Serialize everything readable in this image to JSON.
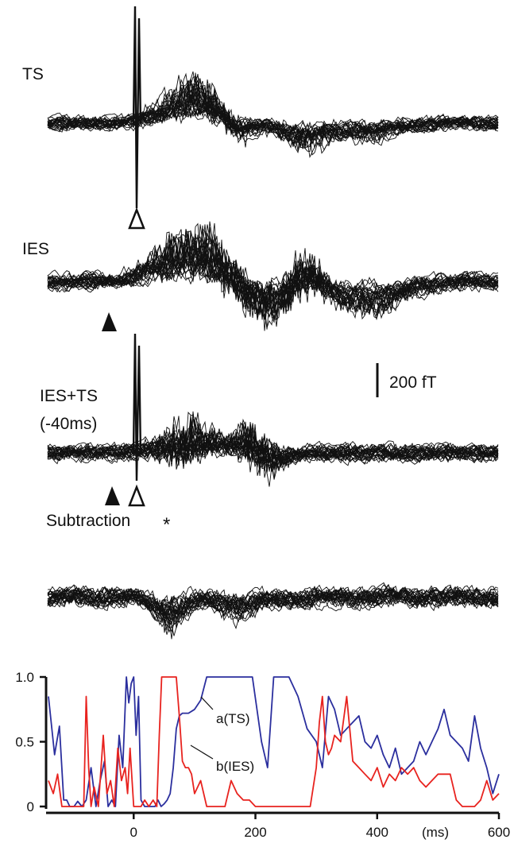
{
  "traces": {
    "panels": [
      {
        "label_lines": [
          "TS"
        ],
        "markers": [
          "open"
        ]
      },
      {
        "label_lines": [
          "IES"
        ],
        "markers": [
          "filled"
        ]
      },
      {
        "label_lines": [
          "IES+TS",
          "(-40ms)"
        ],
        "markers": [
          "filled",
          "open"
        ]
      },
      {
        "label_lines": [
          "Subtraction"
        ],
        "annotation": "*"
      }
    ],
    "scale_bar_label": "200 fT"
  },
  "chart_data": {
    "type": "line",
    "x_unit_label": "(ms)",
    "xlim": [
      -140,
      600
    ],
    "ylim": [
      0,
      1.0
    ],
    "x_ticks": [
      0,
      200,
      400,
      600
    ],
    "y_ticks": [
      0,
      0.5,
      1.0
    ],
    "y_tick_labels": [
      "0",
      "0.5",
      "1.0"
    ],
    "grid": false,
    "series": [
      {
        "name": "a(TS)",
        "color": "#2b2f9e",
        "x": [
          -140,
          -130,
          -122,
          -115,
          -110,
          -105,
          -98,
          -92,
          -85,
          -78,
          -70,
          -62,
          -55,
          -48,
          -42,
          -36,
          -30,
          -24,
          -18,
          -12,
          -8,
          -4,
          0,
          4,
          8,
          12,
          18,
          25,
          30,
          35,
          40,
          45,
          50,
          55,
          60,
          65,
          70,
          75,
          80,
          90,
          100,
          110,
          120,
          135,
          150,
          165,
          180,
          195,
          210,
          220,
          230,
          240,
          255,
          270,
          285,
          300,
          310,
          320,
          330,
          340,
          350,
          360,
          370,
          380,
          390,
          400,
          410,
          420,
          430,
          440,
          450,
          460,
          470,
          480,
          490,
          500,
          510,
          520,
          530,
          540,
          550,
          560,
          570,
          580,
          590,
          600
        ],
        "y": [
          0.85,
          0.4,
          0.62,
          0.05,
          0.05,
          0.0,
          0.0,
          0.04,
          0.0,
          0.05,
          0.3,
          0.0,
          0.2,
          0.35,
          0.0,
          0.05,
          0.0,
          0.55,
          0.3,
          1.0,
          0.8,
          0.95,
          1.0,
          0.55,
          0.85,
          0.05,
          0.0,
          0.0,
          0.0,
          0.0,
          0.05,
          0.0,
          0.02,
          0.05,
          0.1,
          0.3,
          0.6,
          0.7,
          0.72,
          0.72,
          0.75,
          0.82,
          1.0,
          1.0,
          1.0,
          1.0,
          1.0,
          1.0,
          0.5,
          0.3,
          1.0,
          1.0,
          1.0,
          0.85,
          0.6,
          0.5,
          0.3,
          0.85,
          0.75,
          0.55,
          0.6,
          0.65,
          0.7,
          0.5,
          0.45,
          0.55,
          0.4,
          0.3,
          0.45,
          0.25,
          0.3,
          0.35,
          0.5,
          0.4,
          0.5,
          0.6,
          0.75,
          0.55,
          0.5,
          0.45,
          0.35,
          0.7,
          0.45,
          0.3,
          0.1,
          0.25
        ]
      },
      {
        "name": "b(IES)",
        "color": "#e8231f",
        "x": [
          -140,
          -132,
          -125,
          -118,
          -110,
          -100,
          -90,
          -82,
          -78,
          -74,
          -70,
          -65,
          -58,
          -50,
          -44,
          -38,
          -32,
          -26,
          -20,
          -14,
          -10,
          -6,
          0,
          6,
          12,
          18,
          25,
          32,
          38,
          42,
          46,
          50,
          55,
          60,
          65,
          70,
          75,
          80,
          85,
          90,
          95,
          100,
          110,
          120,
          130,
          140,
          150,
          160,
          170,
          180,
          190,
          200,
          215,
          230,
          250,
          270,
          290,
          300,
          305,
          310,
          315,
          320,
          325,
          330,
          340,
          350,
          360,
          370,
          380,
          390,
          400,
          410,
          420,
          430,
          440,
          450,
          460,
          470,
          480,
          490,
          500,
          510,
          520,
          530,
          540,
          550,
          560,
          570,
          580,
          590,
          600
        ],
        "y": [
          0.2,
          0.1,
          0.25,
          0.0,
          0.0,
          0.0,
          0.0,
          0.0,
          0.85,
          0.3,
          0.0,
          0.15,
          0.0,
          0.55,
          0.1,
          0.2,
          0.0,
          0.45,
          0.2,
          0.3,
          0.1,
          0.45,
          0.0,
          0.0,
          0.0,
          0.05,
          0.0,
          0.05,
          0.0,
          0.55,
          1.0,
          1.0,
          1.0,
          1.0,
          1.0,
          1.0,
          0.7,
          0.35,
          0.3,
          0.3,
          0.25,
          0.1,
          0.2,
          0.0,
          0.0,
          0.0,
          0.0,
          0.2,
          0.1,
          0.05,
          0.05,
          0.0,
          0.0,
          0.0,
          0.0,
          0.0,
          0.0,
          0.3,
          0.65,
          0.85,
          0.5,
          0.4,
          0.45,
          0.55,
          0.5,
          0.85,
          0.35,
          0.3,
          0.25,
          0.2,
          0.3,
          0.15,
          0.25,
          0.2,
          0.3,
          0.25,
          0.3,
          0.2,
          0.15,
          0.2,
          0.25,
          0.25,
          0.25,
          0.05,
          0.0,
          0.0,
          0.0,
          0.05,
          0.2,
          0.05,
          0.1
        ]
      }
    ]
  }
}
